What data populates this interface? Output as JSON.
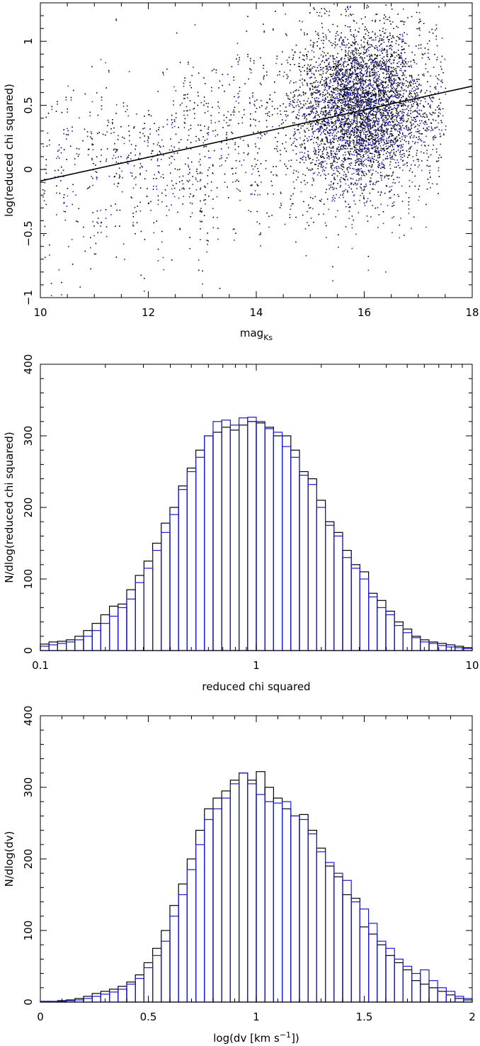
{
  "chart_data": [
    {
      "type": "scatter",
      "xlabel": "mag",
      "xlabel_sub": "Ks",
      "ylabel": "log(reduced chi squared)",
      "xlim": [
        10,
        18
      ],
      "ylim": [
        -1,
        1.3
      ],
      "xticks": [
        10,
        12,
        14,
        16,
        18
      ],
      "yticks": [
        -1,
        -0.5,
        0,
        0.5,
        1
      ],
      "xtick_labels": [
        "10",
        "12",
        "14",
        "16",
        "18"
      ],
      "ytick_labels": [
        "−1",
        "−0.5",
        "0",
        "0.5",
        "1"
      ],
      "fit_line": {
        "x": [
          10,
          18
        ],
        "y": [
          -0.09,
          0.65
        ]
      },
      "series": [
        {
          "name": "black points",
          "color": "#000000",
          "components": [
            {
              "weight": 0.28,
              "xrange": [
                10,
                17.5
              ],
              "y_at_10": -0.05,
              "y_at_18": 0.6,
              "ysd": 0.38
            },
            {
              "weight": 0.72,
              "xmean": 15.9,
              "xsd": 0.55,
              "ymean": 0.5,
              "ysd": 0.3
            }
          ],
          "count": 5000
        },
        {
          "name": "blue points",
          "color": "#2424b0",
          "components": [
            {
              "weight": 0.32,
              "xrange": [
                10,
                17.5
              ],
              "y_at_10": -0.1,
              "y_at_18": 0.55,
              "ysd": 0.4
            },
            {
              "weight": 0.68,
              "xmean": 15.95,
              "xsd": 0.55,
              "ymean": 0.45,
              "ysd": 0.32
            }
          ],
          "count": 4000
        }
      ]
    },
    {
      "type": "histogram",
      "xscale": "log",
      "xlabel": "reduced chi squared",
      "ylabel": "N/dlog(reduced chi squared)",
      "xlim": [
        0.1,
        10
      ],
      "ylim": [
        0,
        400
      ],
      "xticks": [
        0.1,
        1,
        10
      ],
      "yticks": [
        0,
        100,
        200,
        300,
        400
      ],
      "xtick_labels": [
        "0.1",
        "1",
        "10"
      ],
      "ytick_labels": [
        "0",
        "100",
        "200",
        "300",
        "400"
      ],
      "bin_edges_log10": [
        -1.0,
        -0.96,
        -0.92,
        -0.88,
        -0.84,
        -0.8,
        -0.76,
        -0.72,
        -0.68,
        -0.64,
        -0.6,
        -0.56,
        -0.52,
        -0.48,
        -0.44,
        -0.4,
        -0.36,
        -0.32,
        -0.28,
        -0.24,
        -0.2,
        -0.16,
        -0.12,
        -0.08,
        -0.04,
        0.0,
        0.04,
        0.08,
        0.12,
        0.16,
        0.2,
        0.24,
        0.28,
        0.32,
        0.36,
        0.4,
        0.44,
        0.48,
        0.52,
        0.56,
        0.6,
        0.64,
        0.68,
        0.72,
        0.76,
        0.8,
        0.84,
        0.88,
        0.92,
        0.96,
        1.0
      ],
      "series": [
        {
          "name": "black",
          "color": "#000000",
          "values": [
            9,
            12,
            13,
            15,
            20,
            28,
            38,
            50,
            62,
            65,
            85,
            105,
            125,
            150,
            178,
            200,
            230,
            255,
            280,
            300,
            305,
            312,
            308,
            315,
            320,
            318,
            312,
            300,
            300,
            280,
            250,
            240,
            210,
            180,
            165,
            140,
            120,
            110,
            80,
            70,
            55,
            40,
            30,
            20,
            15,
            12,
            10,
            8,
            6,
            4
          ]
        },
        {
          "name": "blue",
          "color": "#1a1ac8",
          "values": [
            6,
            8,
            10,
            12,
            15,
            20,
            28,
            38,
            48,
            60,
            72,
            95,
            115,
            140,
            165,
            190,
            225,
            250,
            270,
            300,
            320,
            322,
            315,
            325,
            326,
            320,
            310,
            305,
            285,
            270,
            245,
            232,
            200,
            175,
            160,
            130,
            115,
            100,
            75,
            60,
            50,
            35,
            25,
            18,
            12,
            10,
            7,
            5,
            4,
            3
          ]
        }
      ]
    },
    {
      "type": "histogram",
      "xlabel": "log(dv [km s",
      "xlabel_sup": "−1",
      "xlabel_end": "])",
      "ylabel": "N/dlog(dv)",
      "xlim": [
        0,
        2
      ],
      "ylim": [
        0,
        400
      ],
      "xticks": [
        0,
        0.5,
        1,
        1.5,
        2
      ],
      "yticks": [
        0,
        100,
        200,
        300,
        400
      ],
      "xtick_labels": [
        "0",
        "0.5",
        "1",
        "1.5",
        "2"
      ],
      "ytick_labels": [
        "0",
        "100",
        "200",
        "300",
        "400"
      ],
      "bin_edges": [
        0.0,
        0.04,
        0.08,
        0.12,
        0.16,
        0.2,
        0.24,
        0.28,
        0.32,
        0.36,
        0.4,
        0.44,
        0.48,
        0.52,
        0.56,
        0.6,
        0.64,
        0.68,
        0.72,
        0.76,
        0.8,
        0.84,
        0.88,
        0.92,
        0.96,
        1.0,
        1.04,
        1.08,
        1.12,
        1.16,
        1.2,
        1.24,
        1.28,
        1.32,
        1.36,
        1.4,
        1.44,
        1.48,
        1.52,
        1.56,
        1.6,
        1.64,
        1.68,
        1.72,
        1.76,
        1.8,
        1.84,
        1.88,
        1.92,
        1.96,
        2.0
      ],
      "series": [
        {
          "name": "black",
          "color": "#000000",
          "values": [
            1,
            1,
            2,
            3,
            5,
            8,
            12,
            15,
            18,
            22,
            28,
            38,
            55,
            75,
            100,
            135,
            165,
            200,
            240,
            270,
            285,
            295,
            310,
            320,
            310,
            322,
            300,
            285,
            270,
            260,
            262,
            240,
            215,
            190,
            175,
            150,
            145,
            105,
            95,
            80,
            65,
            55,
            45,
            30,
            25,
            20,
            15,
            10,
            5,
            3
          ]
        },
        {
          "name": "blue",
          "color": "#1a1ac8",
          "values": [
            1,
            1,
            1,
            2,
            3,
            5,
            8,
            11,
            14,
            18,
            25,
            33,
            48,
            65,
            85,
            120,
            150,
            185,
            220,
            255,
            270,
            285,
            305,
            320,
            305,
            290,
            280,
            278,
            280,
            260,
            255,
            235,
            210,
            195,
            180,
            170,
            140,
            130,
            110,
            85,
            75,
            60,
            50,
            40,
            45,
            30,
            20,
            15,
            8,
            5
          ]
        }
      ]
    }
  ]
}
